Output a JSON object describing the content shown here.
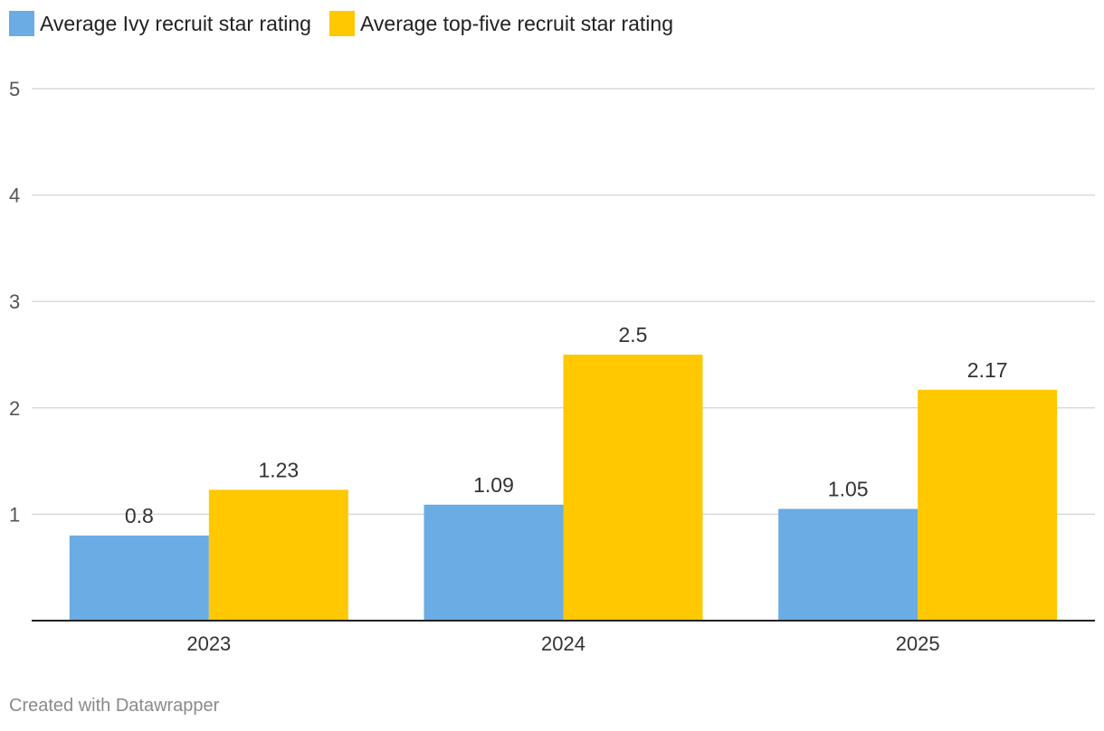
{
  "legend": {
    "items": [
      {
        "label": "Average Ivy recruit star rating",
        "color": "#6aace3"
      },
      {
        "label": "Average top-five recruit star rating",
        "color": "#ffc800"
      }
    ]
  },
  "chart_data": {
    "type": "bar",
    "categories": [
      "2023",
      "2024",
      "2025"
    ],
    "series": [
      {
        "name": "Average Ivy recruit star rating",
        "values": [
          0.8,
          1.09,
          1.05
        ],
        "labels": [
          "0.8",
          "1.09",
          "1.05"
        ],
        "color": "#6aace3"
      },
      {
        "name": "Average top-five recruit star rating",
        "values": [
          1.23,
          2.5,
          2.17
        ],
        "labels": [
          "1.23",
          "2.5",
          "2.17"
        ],
        "color": "#ffc800"
      }
    ],
    "ylim": [
      0,
      5
    ],
    "yticks": [
      1,
      2,
      3,
      4,
      5
    ],
    "grid": true,
    "legend_position": "top-left",
    "title": "",
    "xlabel": "",
    "ylabel": ""
  },
  "footer": {
    "credit": "Created with Datawrapper"
  }
}
